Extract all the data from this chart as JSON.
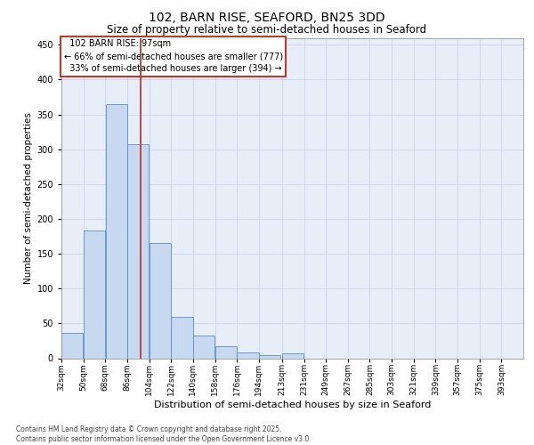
{
  "title_line1": "102, BARN RISE, SEAFORD, BN25 3DD",
  "title_line2": "Size of property relative to semi-detached houses in Seaford",
  "xlabel": "Distribution of semi-detached houses by size in Seaford",
  "ylabel": "Number of semi-detached properties",
  "footer_line1": "Contains HM Land Registry data © Crown copyright and database right 2025.",
  "footer_line2": "Contains public sector information licensed under the Open Government Licence v3.0.",
  "property_label": "102 BARN RISE: 97sqm",
  "pct_smaller": 66,
  "count_smaller": 777,
  "pct_larger": 33,
  "count_larger": 394,
  "bin_labels": [
    "32sqm",
    "50sqm",
    "68sqm",
    "86sqm",
    "104sqm",
    "122sqm",
    "140sqm",
    "158sqm",
    "176sqm",
    "194sqm",
    "213sqm",
    "231sqm",
    "249sqm",
    "267sqm",
    "285sqm",
    "303sqm",
    "321sqm",
    "339sqm",
    "357sqm",
    "375sqm",
    "393sqm"
  ],
  "bin_left_edges": [
    32,
    50,
    68,
    86,
    104,
    122,
    140,
    158,
    176,
    194,
    213,
    231,
    249,
    267,
    285,
    303,
    321,
    339,
    357,
    375,
    393
  ],
  "bin_width": 18,
  "bar_heights": [
    37,
    183,
    365,
    307,
    165,
    60,
    33,
    17,
    8,
    5,
    7,
    0,
    0,
    0,
    0,
    0,
    0,
    0,
    0,
    0,
    0
  ],
  "bar_color": "#c6d9f0",
  "bar_edge_color": "#5b8ec4",
  "vline_color": "#c0392b",
  "vline_x": 97,
  "grid_color": "#c8d4e8",
  "plot_background": "#e8eef8",
  "ylim": [
    0,
    460
  ],
  "yticks": [
    0,
    50,
    100,
    150,
    200,
    250,
    300,
    350,
    400,
    450
  ],
  "xlim_left": 32,
  "xlim_right": 411,
  "legend_box_color": "#c0392b",
  "title1_fontsize": 10,
  "title2_fontsize": 8.5,
  "ylabel_fontsize": 7.5,
  "xlabel_fontsize": 8,
  "tick_fontsize": 6.5,
  "legend_fontsize": 7,
  "footer_fontsize": 5.5
}
